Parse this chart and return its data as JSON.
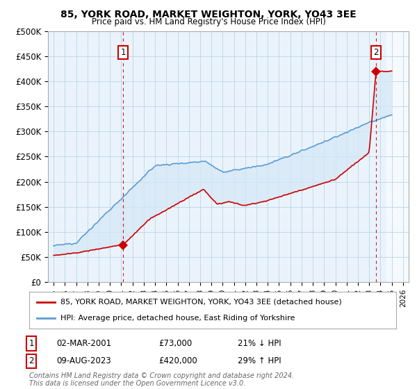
{
  "title": "85, YORK ROAD, MARKET WEIGHTON, YORK, YO43 3EE",
  "subtitle": "Price paid vs. HM Land Registry's House Price Index (HPI)",
  "ylim": [
    0,
    500000
  ],
  "yticks": [
    0,
    50000,
    100000,
    150000,
    200000,
    250000,
    300000,
    350000,
    400000,
    450000,
    500000
  ],
  "ytick_labels": [
    "£0",
    "£50K",
    "£100K",
    "£150K",
    "£200K",
    "£250K",
    "£300K",
    "£350K",
    "£400K",
    "£450K",
    "£500K"
  ],
  "hpi_color": "#5b9bd5",
  "sale_color": "#cc0000",
  "fill_color": "#d6e8f7",
  "marker1_date_x": 2001.17,
  "marker1_y": 73000,
  "marker2_date_x": 2023.6,
  "marker2_y": 420000,
  "legend_sale_label": "85, YORK ROAD, MARKET WEIGHTON, YORK, YO43 3EE (detached house)",
  "legend_hpi_label": "HPI: Average price, detached house, East Riding of Yorkshire",
  "annotation1_label": "1",
  "annotation1_date": "02-MAR-2001",
  "annotation1_price": "£73,000",
  "annotation1_hpi": "21% ↓ HPI",
  "annotation2_label": "2",
  "annotation2_date": "09-AUG-2023",
  "annotation2_price": "£420,000",
  "annotation2_hpi": "29% ↑ HPI",
  "footnote": "Contains HM Land Registry data © Crown copyright and database right 2024.\nThis data is licensed under the Open Government Licence v3.0.",
  "background_color": "#ffffff",
  "plot_bg_color": "#eaf3fb",
  "grid_color": "#b8d4e8",
  "xlim_left": 1994.5,
  "xlim_right": 2026.5
}
